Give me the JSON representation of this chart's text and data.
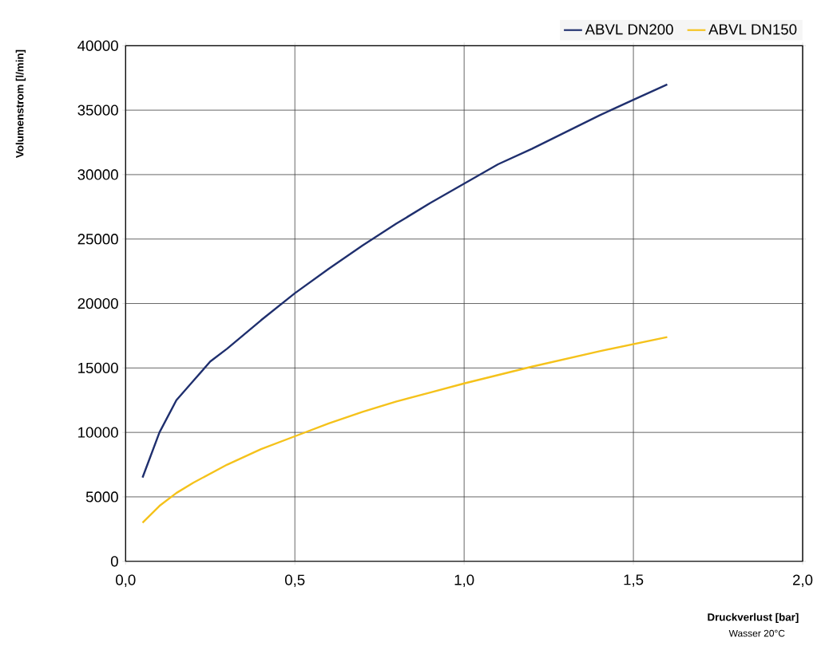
{
  "chart_data": {
    "type": "line",
    "xlabel": "Druckverlust [bar]",
    "ylabel": "Volumenstrom [l/min]",
    "annotations": [
      "Wasser 20°C"
    ],
    "series": [
      {
        "name": "ABVL DN200",
        "color": "#1f2f6e",
        "x": [
          0.05,
          0.1,
          0.15,
          0.2,
          0.25,
          0.3,
          0.4,
          0.5,
          0.6,
          0.7,
          0.8,
          0.9,
          1.0,
          1.1,
          1.2,
          1.3,
          1.4,
          1.5,
          1.6
        ],
        "values": [
          6500,
          10000,
          12500,
          14000,
          15500,
          16500,
          18700,
          20800,
          22700,
          24500,
          26200,
          27800,
          29300,
          30800,
          32000,
          33300,
          34600,
          35800,
          37000
        ]
      },
      {
        "name": "ABVL DN150",
        "color": "#f5c21b",
        "x": [
          0.05,
          0.1,
          0.15,
          0.2,
          0.3,
          0.4,
          0.5,
          0.6,
          0.7,
          0.8,
          0.9,
          1.0,
          1.2,
          1.4,
          1.6
        ],
        "values": [
          3000,
          4300,
          5300,
          6100,
          7500,
          8700,
          9700,
          10700,
          11600,
          12400,
          13100,
          13800,
          15100,
          16300,
          17400
        ]
      }
    ],
    "xlim": [
      0,
      2
    ],
    "ylim": [
      0,
      40000
    ],
    "xticks": [
      {
        "value": 0,
        "label": "0,0"
      },
      {
        "value": 0.5,
        "label": "0,5"
      },
      {
        "value": 1,
        "label": "1,0"
      },
      {
        "value": 1.5,
        "label": "1,5"
      },
      {
        "value": 2,
        "label": "2,0"
      }
    ],
    "yticks": [
      0,
      5000,
      10000,
      15000,
      20000,
      25000,
      30000,
      35000,
      40000
    ],
    "grid": true,
    "legend": "top right",
    "marker": "none",
    "line_style": "solid"
  }
}
